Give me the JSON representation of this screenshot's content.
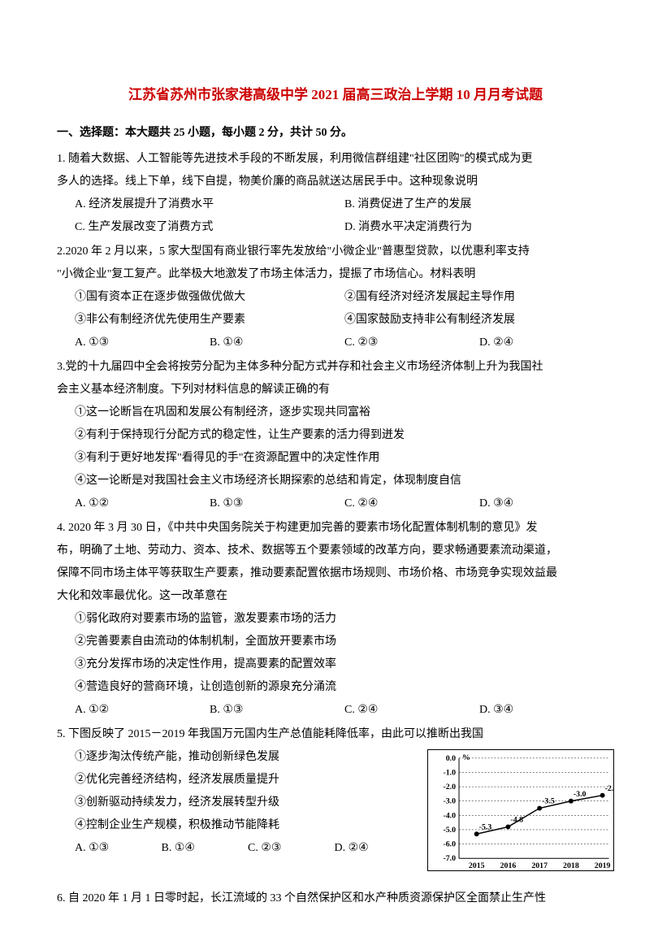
{
  "title_prefix_red": "江苏省苏州市张家港高级中学 2021 届高三政治上学期 10 月月考试题",
  "title_color": "#cc0000",
  "section1_header": "一、选择题：本大题共 25 小题，每小题 2 分，共计 50 分。",
  "q1": {
    "stem_l1": "1. 随着大数据、人工智能等先进技术手段的不断发展，利用微信群组建\"社区团购\"的模式成为更",
    "stem_l2": "多人的选择。线上下单，线下自提，物美价廉的商品就送达居民手中。这种现象说明",
    "opt_a": "A. 经济发展提升了消费水平",
    "opt_b": "B. 消费促进了生产的发展",
    "opt_c": "C. 生产发展改变了消费方式",
    "opt_d": "D. 消费水平决定消费行为"
  },
  "q2": {
    "stem_l1": "2.2020 年 2 月以来，5 家大型国有商业银行率先发放给\"小微企业\"普惠型贷款，以优惠利率支持",
    "stem_l2": "\"小微企业\"复工复产。此举极大地激发了市场主体活力，提振了市场信心。材料表明",
    "s1": "①国有资本正在逐步做强做优做大",
    "s2": "②国有经济对经济发展起主导作用",
    "s3": "③非公有制经济优先使用生产要素",
    "s4": "④国家鼓励支持非公有制经济发展",
    "opt_a": "A. ①③",
    "opt_b": "B. ①④",
    "opt_c": "C. ②③",
    "opt_d": "D. ②④"
  },
  "q3": {
    "stem_l1": "3.党的十九届四中全会将按劳分配为主体多种分配方式并存和社会主义市场经济体制上升为我国社",
    "stem_l2": "会主义基本经济制度。下列对材料信息的解读正确的有",
    "s1": "①这一论断旨在巩固和发展公有制经济，逐步实现共同富裕",
    "s2": "②有利于保持现行分配方式的稳定性，让生产要素的活力得到迸发",
    "s3": "③有利于更好地发挥\"看得见的手\"在资源配置中的决定性作用",
    "s4": "④这一论断是对我国社会主义市场经济长期探索的总结和肯定，体现制度自信",
    "opt_a": "A. ①②",
    "opt_b": "B. ①③",
    "opt_c": "C. ②④",
    "opt_d": "D. ③④"
  },
  "q4": {
    "stem_l1": "4. 2020 年 3 月 30 日，《中共中央国务院关于构建更加完善的要素市场化配置体制机制的意见》发",
    "stem_l2": "布，明确了土地、劳动力、资本、技术、数据等五个要素领域的改革方向，要求畅通要素流动渠道，",
    "stem_l3": "保障不同市场主体平等获取生产要素，推动要素配置依据市场规则、市场价格、市场竞争实现效益最",
    "stem_l4": "大化和效率最优化。这一改革意在",
    "s1": "①弱化政府对要素市场的监管，激发要素市场的活力",
    "s2": "②完善要素自由流动的体制机制，全面放开要素市场",
    "s3": "③充分发挥市场的决定性作用，提高要素的配置效率",
    "s4": "④营造良好的营商环境，让创造创新的源泉充分涌流",
    "opt_a": "A. ①②",
    "opt_b": "B. ①③",
    "opt_c": "C. ②④",
    "opt_d": "D. ③④"
  },
  "q5": {
    "stem": "5. 下图反映了 2015－2019 年我国万元国内生产总值能耗降低率，由此可以推断出我国",
    "s1": "①逐步淘汰传统产能，推动创新绿色发展",
    "s2": "②优化完善经济结构，经济发展质量提升",
    "s3": "③创新驱动持续发力，经济发展转型升级",
    "s4": "④控制企业生产规模，积极推动节能降耗",
    "opt_a": "A. ①③",
    "opt_b": "B. ①④",
    "opt_c": "C. ②③",
    "opt_d": "D. ②④",
    "chart": {
      "type": "line",
      "years": [
        "2015",
        "2016",
        "2017",
        "2018",
        "2019"
      ],
      "values": [
        -5.3,
        -4.8,
        -3.5,
        -3.0,
        -2.6
      ],
      "ylim": [
        -7.0,
        0.0
      ],
      "ytick_step": 1.0,
      "ylabel_unit": "%",
      "line_color": "#000000",
      "marker": "circle",
      "marker_fill": "#000000",
      "background_color": "#ffffff",
      "grid": false,
      "font_size": 10
    }
  },
  "q6": {
    "stem_l1": "6. 自 2020 年 1 月 1 日零时起，长江流域的 33 个自然保护区和水产种质资源保护区全面禁止生产性"
  }
}
